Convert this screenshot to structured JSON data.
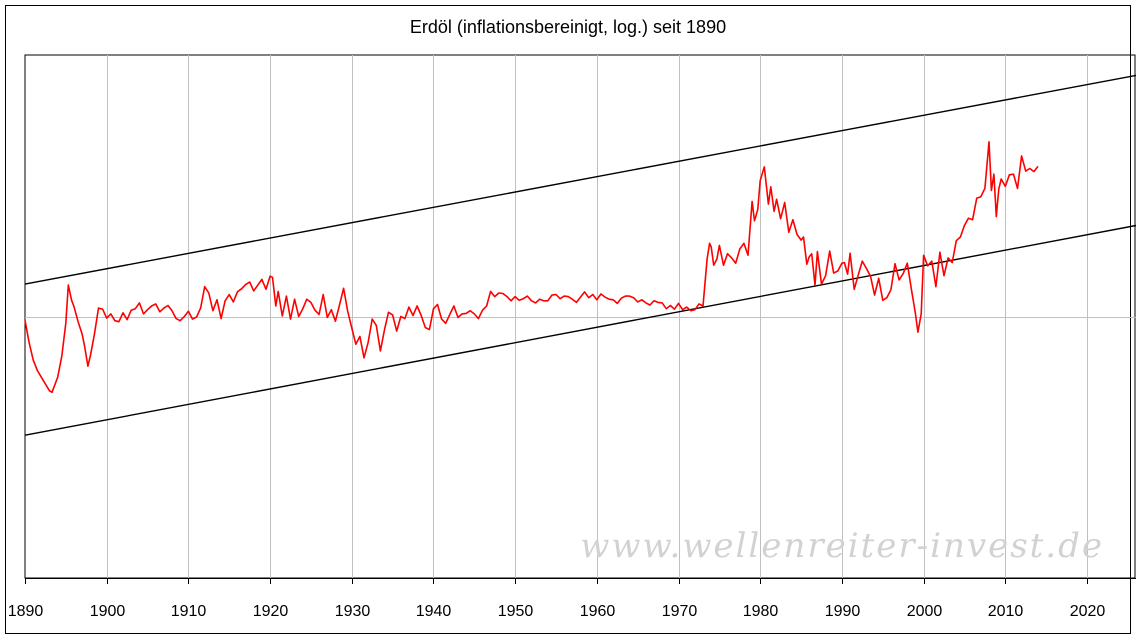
{
  "chart_data": {
    "type": "line",
    "title": "Erdöl (inflationsbereinigt, log.) seit 1890",
    "xlabel": "",
    "ylabel": "",
    "xlim": [
      1890,
      2026
    ],
    "x_ticks": [
      1890,
      1900,
      1910,
      1920,
      1930,
      1940,
      1950,
      1960,
      1970,
      1980,
      1990,
      2000,
      2010,
      2020
    ],
    "y_scale": "log",
    "y_units": "relative (unlabeled, log scale)",
    "y_range_relative": [
      0,
      1
    ],
    "grid": true,
    "legend": "none",
    "watermark": "www.wellenreiter-invest.de",
    "colors": {
      "series": "#ff0000",
      "channel": "#000000",
      "grid": "#c0c0c0"
    },
    "series": [
      {
        "color": "#ff0000",
        "x": [
          1890.0,
          1890.5,
          1891.0,
          1891.5,
          1892.0,
          1892.5,
          1893.0,
          1893.3,
          1894.0,
          1894.5,
          1895.0,
          1895.3,
          1895.7,
          1896.0,
          1896.5,
          1897.0,
          1897.3,
          1897.7,
          1898.0,
          1898.5,
          1899.0,
          1899.5,
          1900.0,
          1900.5,
          1901.0,
          1901.5,
          1902.0,
          1902.5,
          1903.0,
          1903.5,
          1904.0,
          1904.5,
          1905.0,
          1905.5,
          1906.0,
          1906.5,
          1907.0,
          1907.5,
          1908.0,
          1908.5,
          1909.0,
          1909.5,
          1910.0,
          1910.5,
          1911.0,
          1911.5,
          1912.0,
          1912.5,
          1913.0,
          1913.5,
          1914.0,
          1914.5,
          1915.0,
          1915.5,
          1916.0,
          1916.5,
          1917.0,
          1917.5,
          1918.0,
          1918.5,
          1919.0,
          1919.5,
          1920.0,
          1920.3,
          1920.7,
          1921.0,
          1921.5,
          1922.0,
          1922.5,
          1923.0,
          1923.5,
          1924.0,
          1924.5,
          1925.0,
          1925.5,
          1926.0,
          1926.5,
          1927.0,
          1927.5,
          1928.0,
          1928.5,
          1929.0,
          1929.5,
          1930.0,
          1930.5,
          1931.0,
          1931.5,
          1932.0,
          1932.5,
          1933.0,
          1933.5,
          1934.0,
          1934.5,
          1935.0,
          1935.5,
          1936.0,
          1936.5,
          1937.0,
          1937.5,
          1938.0,
          1938.5,
          1939.0,
          1939.5,
          1940.0,
          1940.5,
          1941.0,
          1941.5,
          1942.0,
          1942.5,
          1943.0,
          1943.5,
          1944.0,
          1944.5,
          1945.0,
          1945.5,
          1946.0,
          1946.5,
          1947.0,
          1947.5,
          1948.0,
          1948.5,
          1949.0,
          1949.5,
          1950.0,
          1950.5,
          1951.0,
          1951.5,
          1952.0,
          1952.5,
          1953.0,
          1953.5,
          1954.0,
          1954.5,
          1955.0,
          1955.5,
          1956.0,
          1956.5,
          1957.0,
          1957.5,
          1958.0,
          1958.5,
          1959.0,
          1959.5,
          1960.0,
          1960.5,
          1961.0,
          1961.5,
          1962.0,
          1962.5,
          1963.0,
          1963.5,
          1964.0,
          1964.5,
          1965.0,
          1965.5,
          1966.0,
          1966.5,
          1967.0,
          1967.5,
          1968.0,
          1968.5,
          1969.0,
          1969.5,
          1970.0,
          1970.5,
          1971.0,
          1971.5,
          1972.0,
          1972.5,
          1973.0,
          1973.5,
          1973.8,
          1974.0,
          1974.3,
          1974.7,
          1975.0,
          1975.5,
          1976.0,
          1976.5,
          1977.0,
          1977.5,
          1978.0,
          1978.5,
          1979.0,
          1979.3,
          1979.7,
          1980.0,
          1980.5,
          1981.0,
          1981.3,
          1981.7,
          1982.0,
          1982.5,
          1983.0,
          1983.5,
          1984.0,
          1984.5,
          1985.0,
          1985.3,
          1985.7,
          1986.0,
          1986.3,
          1986.7,
          1987.0,
          1987.5,
          1988.0,
          1988.5,
          1989.0,
          1989.5,
          1990.0,
          1990.3,
          1990.7,
          1991.0,
          1991.5,
          1992.0,
          1992.5,
          1993.0,
          1993.5,
          1994.0,
          1994.5,
          1995.0,
          1995.5,
          1996.0,
          1996.5,
          1997.0,
          1997.5,
          1998.0,
          1998.5,
          1999.0,
          1999.3,
          1999.7,
          2000.0,
          2000.5,
          2001.0,
          2001.5,
          2002.0,
          2002.5,
          2003.0,
          2003.5,
          2004.0,
          2004.5,
          2005.0,
          2005.5,
          2006.0,
          2006.5,
          2007.0,
          2007.5,
          2008.0,
          2008.3,
          2008.6,
          2008.9,
          2009.2,
          2009.5,
          2010.0,
          2010.5,
          2011.0,
          2011.5,
          2012.0,
          2012.5,
          2013.0,
          2013.5,
          2014.0
        ],
        "y_relative": [
          0.493,
          0.45,
          0.417,
          0.397,
          0.384,
          0.371,
          0.358,
          0.355,
          0.384,
          0.424,
          0.487,
          0.56,
          0.531,
          0.519,
          0.49,
          0.466,
          0.443,
          0.405,
          0.425,
          0.466,
          0.516,
          0.514,
          0.497,
          0.505,
          0.492,
          0.49,
          0.507,
          0.494,
          0.512,
          0.515,
          0.526,
          0.505,
          0.513,
          0.52,
          0.524,
          0.509,
          0.516,
          0.521,
          0.511,
          0.496,
          0.492,
          0.5,
          0.51,
          0.495,
          0.499,
          0.516,
          0.557,
          0.545,
          0.511,
          0.532,
          0.496,
          0.53,
          0.542,
          0.528,
          0.547,
          0.553,
          0.561,
          0.566,
          0.549,
          0.56,
          0.571,
          0.552,
          0.577,
          0.575,
          0.52,
          0.548,
          0.501,
          0.539,
          0.495,
          0.533,
          0.5,
          0.515,
          0.533,
          0.527,
          0.512,
          0.504,
          0.542,
          0.498,
          0.513,
          0.491,
          0.522,
          0.554,
          0.51,
          0.478,
          0.447,
          0.462,
          0.421,
          0.45,
          0.495,
          0.483,
          0.434,
          0.474,
          0.508,
          0.503,
          0.472,
          0.5,
          0.496,
          0.518,
          0.502,
          0.52,
          0.502,
          0.479,
          0.475,
          0.515,
          0.523,
          0.495,
          0.487,
          0.504,
          0.52,
          0.498,
          0.505,
          0.506,
          0.511,
          0.505,
          0.496,
          0.512,
          0.52,
          0.548,
          0.538,
          0.545,
          0.544,
          0.538,
          0.53,
          0.538,
          0.531,
          0.534,
          0.539,
          0.53,
          0.526,
          0.533,
          0.53,
          0.53,
          0.541,
          0.542,
          0.534,
          0.539,
          0.538,
          0.533,
          0.527,
          0.537,
          0.547,
          0.536,
          0.542,
          0.532,
          0.543,
          0.537,
          0.533,
          0.532,
          0.525,
          0.535,
          0.539,
          0.539,
          0.536,
          0.528,
          0.532,
          0.526,
          0.522,
          0.53,
          0.527,
          0.526,
          0.515,
          0.521,
          0.514,
          0.525,
          0.513,
          0.518,
          0.511,
          0.513,
          0.524,
          0.52,
          0.61,
          0.64,
          0.633,
          0.598,
          0.61,
          0.636,
          0.598,
          0.62,
          0.612,
          0.602,
          0.629,
          0.64,
          0.617,
          0.72,
          0.683,
          0.705,
          0.76,
          0.786,
          0.715,
          0.748,
          0.701,
          0.724,
          0.687,
          0.718,
          0.661,
          0.685,
          0.657,
          0.646,
          0.652,
          0.6,
          0.614,
          0.62,
          0.56,
          0.624,
          0.562,
          0.578,
          0.625,
          0.583,
          0.587,
          0.602,
          0.603,
          0.581,
          0.621,
          0.552,
          0.58,
          0.606,
          0.592,
          0.577,
          0.541,
          0.573,
          0.531,
          0.536,
          0.551,
          0.601,
          0.57,
          0.582,
          0.602,
          0.553,
          0.506,
          0.47,
          0.505,
          0.617,
          0.597,
          0.606,
          0.557,
          0.623,
          0.578,
          0.612,
          0.603,
          0.645,
          0.652,
          0.674,
          0.688,
          0.685,
          0.726,
          0.729,
          0.745,
          0.834,
          0.741,
          0.772,
          0.691,
          0.744,
          0.763,
          0.749,
          0.771,
          0.772,
          0.745,
          0.807,
          0.778,
          0.783,
          0.777,
          0.787
        ]
      }
    ],
    "lines": [
      {
        "name": "",
        "x": [
          1890,
          2026
        ],
        "y_relative": [
          0.562,
          0.961
        ]
      },
      {
        "name": "",
        "x": [
          1890,
          2026
        ],
        "y_relative": [
          0.273,
          0.674
        ]
      }
    ]
  }
}
